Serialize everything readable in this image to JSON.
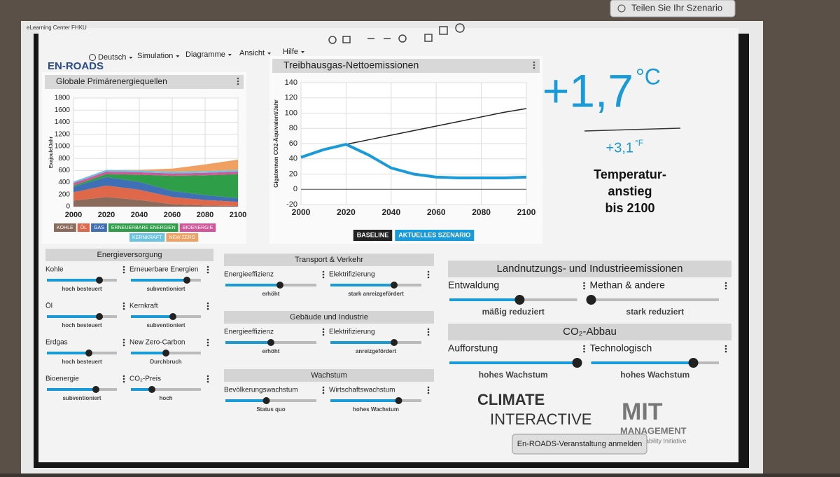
{
  "window_title": "eLearning Center FHKU",
  "share_button": "Teilen Sie Ihr Szenario",
  "menu": {
    "logo": "EN-ROADS",
    "items": [
      "Deutsch",
      "Simulation",
      "Diagramme",
      "Ansicht",
      "Hilfe"
    ]
  },
  "chart_data": [
    {
      "type": "area",
      "title": "Globale Primärenergiequellen",
      "y_label": "Exajoule/Jahr",
      "x": [
        2000,
        2020,
        2040,
        2060,
        2080,
        2100
      ],
      "xlim": [
        2000,
        2100
      ],
      "xticks": [
        2000,
        2020,
        2040,
        2060,
        2080,
        2100
      ],
      "ylim": [
        0,
        1800
      ],
      "yticks": [
        0,
        200,
        400,
        600,
        800,
        1000,
        1200,
        1400,
        1600,
        1800
      ],
      "grid": true,
      "stacked": true,
      "series": [
        {
          "name": "KOHLE",
          "color": "#8a6a5a",
          "values": [
            100,
            160,
            110,
            40,
            20,
            10
          ]
        },
        {
          "name": "ÖL",
          "color": "#e0684a",
          "values": [
            140,
            190,
            170,
            120,
            90,
            70
          ]
        },
        {
          "name": "GAS",
          "color": "#3f6fb5",
          "values": [
            90,
            140,
            130,
            100,
            80,
            60
          ]
        },
        {
          "name": "ERNEUERBARE ENERGIEN",
          "color": "#2f9e48",
          "values": [
            20,
            50,
            120,
            250,
            330,
            400
          ]
        },
        {
          "name": "BIOENERGIE",
          "color": "#d4559a",
          "values": [
            40,
            40,
            40,
            40,
            40,
            40
          ]
        },
        {
          "name": "KERNKRAFT",
          "color": "#6cc3e0",
          "values": [
            25,
            30,
            30,
            30,
            30,
            30
          ]
        },
        {
          "name": "NEW ZERO",
          "color": "#f0a060",
          "values": [
            0,
            0,
            10,
            50,
            110,
            170
          ]
        }
      ]
    },
    {
      "type": "line",
      "title": "Treibhausgas-Nettoemissionen",
      "y_label": "Gigatonnen CO2-Äquivalent/Jahr",
      "x": [
        2000,
        2010,
        2020,
        2030,
        2040,
        2050,
        2060,
        2070,
        2080,
        2090,
        2100
      ],
      "xlim": [
        2000,
        2100
      ],
      "xticks": [
        2000,
        2020,
        2040,
        2060,
        2080,
        2100
      ],
      "ylim": [
        -20,
        140
      ],
      "yticks": [
        -20,
        0,
        20,
        40,
        60,
        80,
        100,
        120,
        140
      ],
      "grid": true,
      "series": [
        {
          "name": "BASELINE",
          "color": "#222222",
          "values": [
            42,
            52,
            59,
            65,
            71,
            77,
            83,
            89,
            95,
            101,
            106
          ]
        },
        {
          "name": "AKTUELLES SZENARIO",
          "color": "#1a9ad6",
          "values": [
            42,
            52,
            59,
            45,
            28,
            20,
            16,
            15,
            15,
            15,
            16
          ]
        }
      ]
    }
  ],
  "temperature": {
    "celsius": "+1,7",
    "celsius_unit": "°C",
    "fahrenheit": "+3,1",
    "fahrenheit_unit": "°F",
    "label": [
      "Temperatur-",
      "anstieg",
      "bis 2100"
    ]
  },
  "slider_groups": [
    {
      "title": "Energieversorgung",
      "sliders": [
        {
          "label": "Kohle",
          "setting": "hoch besteuert",
          "position": 0.75
        },
        {
          "label": "Erneuerbare Energien",
          "setting": "subventioniert",
          "position": 0.8
        },
        {
          "label": "Öl",
          "setting": "hoch besteuert",
          "position": 0.75
        },
        {
          "label": "Kernkraft",
          "setting": "subventioniert",
          "position": 0.6
        },
        {
          "label": "Erdgas",
          "setting": "hoch besteuert",
          "position": 0.6
        },
        {
          "label": "New Zero-Carbon",
          "setting": "Durchbruch",
          "position": 0.5
        },
        {
          "label": "Bioenergie",
          "setting": "subventioniert",
          "position": 0.7
        },
        {
          "label": "CO₂-Preis",
          "setting": "hoch",
          "position": 0.3
        }
      ]
    },
    {
      "title": "Transport & Verkehr",
      "sliders": [
        {
          "label": "Energieeffizienz",
          "setting": "erhöht",
          "position": 0.6
        },
        {
          "label": "Elektrifizierung",
          "setting": "stark anreizgefördert",
          "position": 0.7
        }
      ]
    },
    {
      "title": "Gebäude und Industrie",
      "sliders": [
        {
          "label": "Energieeffizienz",
          "setting": "erhöht",
          "position": 0.5
        },
        {
          "label": "Elektrifizierung",
          "setting": "anreizgefördert",
          "position": 0.7
        }
      ]
    },
    {
      "title": "Wachstum",
      "sliders": [
        {
          "label": "Bevölkerungswachstum",
          "setting": "Status quo",
          "position": 0.45
        },
        {
          "label": "Wirtschaftswachstum",
          "setting": "hohes Wachstum",
          "position": 0.75
        }
      ]
    },
    {
      "title": "Landnutzungs- und Industrieemissionen",
      "sliders": [
        {
          "label": "Entwaldung",
          "setting": "mäßig reduziert",
          "position": 0.55
        },
        {
          "label": "Methan & andere",
          "setting": "stark reduziert",
          "position": 0.0
        }
      ]
    },
    {
      "title": "CO₂-Abbau",
      "sliders": [
        {
          "label": "Aufforstung",
          "setting": "hohes Wachstum",
          "position": 1.0
        },
        {
          "label": "Technologisch",
          "setting": "hohes Wachstum",
          "position": 0.8
        }
      ]
    }
  ],
  "logos": {
    "climate_top": "CLIMATE",
    "climate_bottom": "INTERACTIVE",
    "mit": "MIT",
    "mit_sub": "MANAGEMENT",
    "mit_tag": "Sustainability Initiative"
  },
  "register_button": "En-ROADS-Veranstaltung anmelden"
}
